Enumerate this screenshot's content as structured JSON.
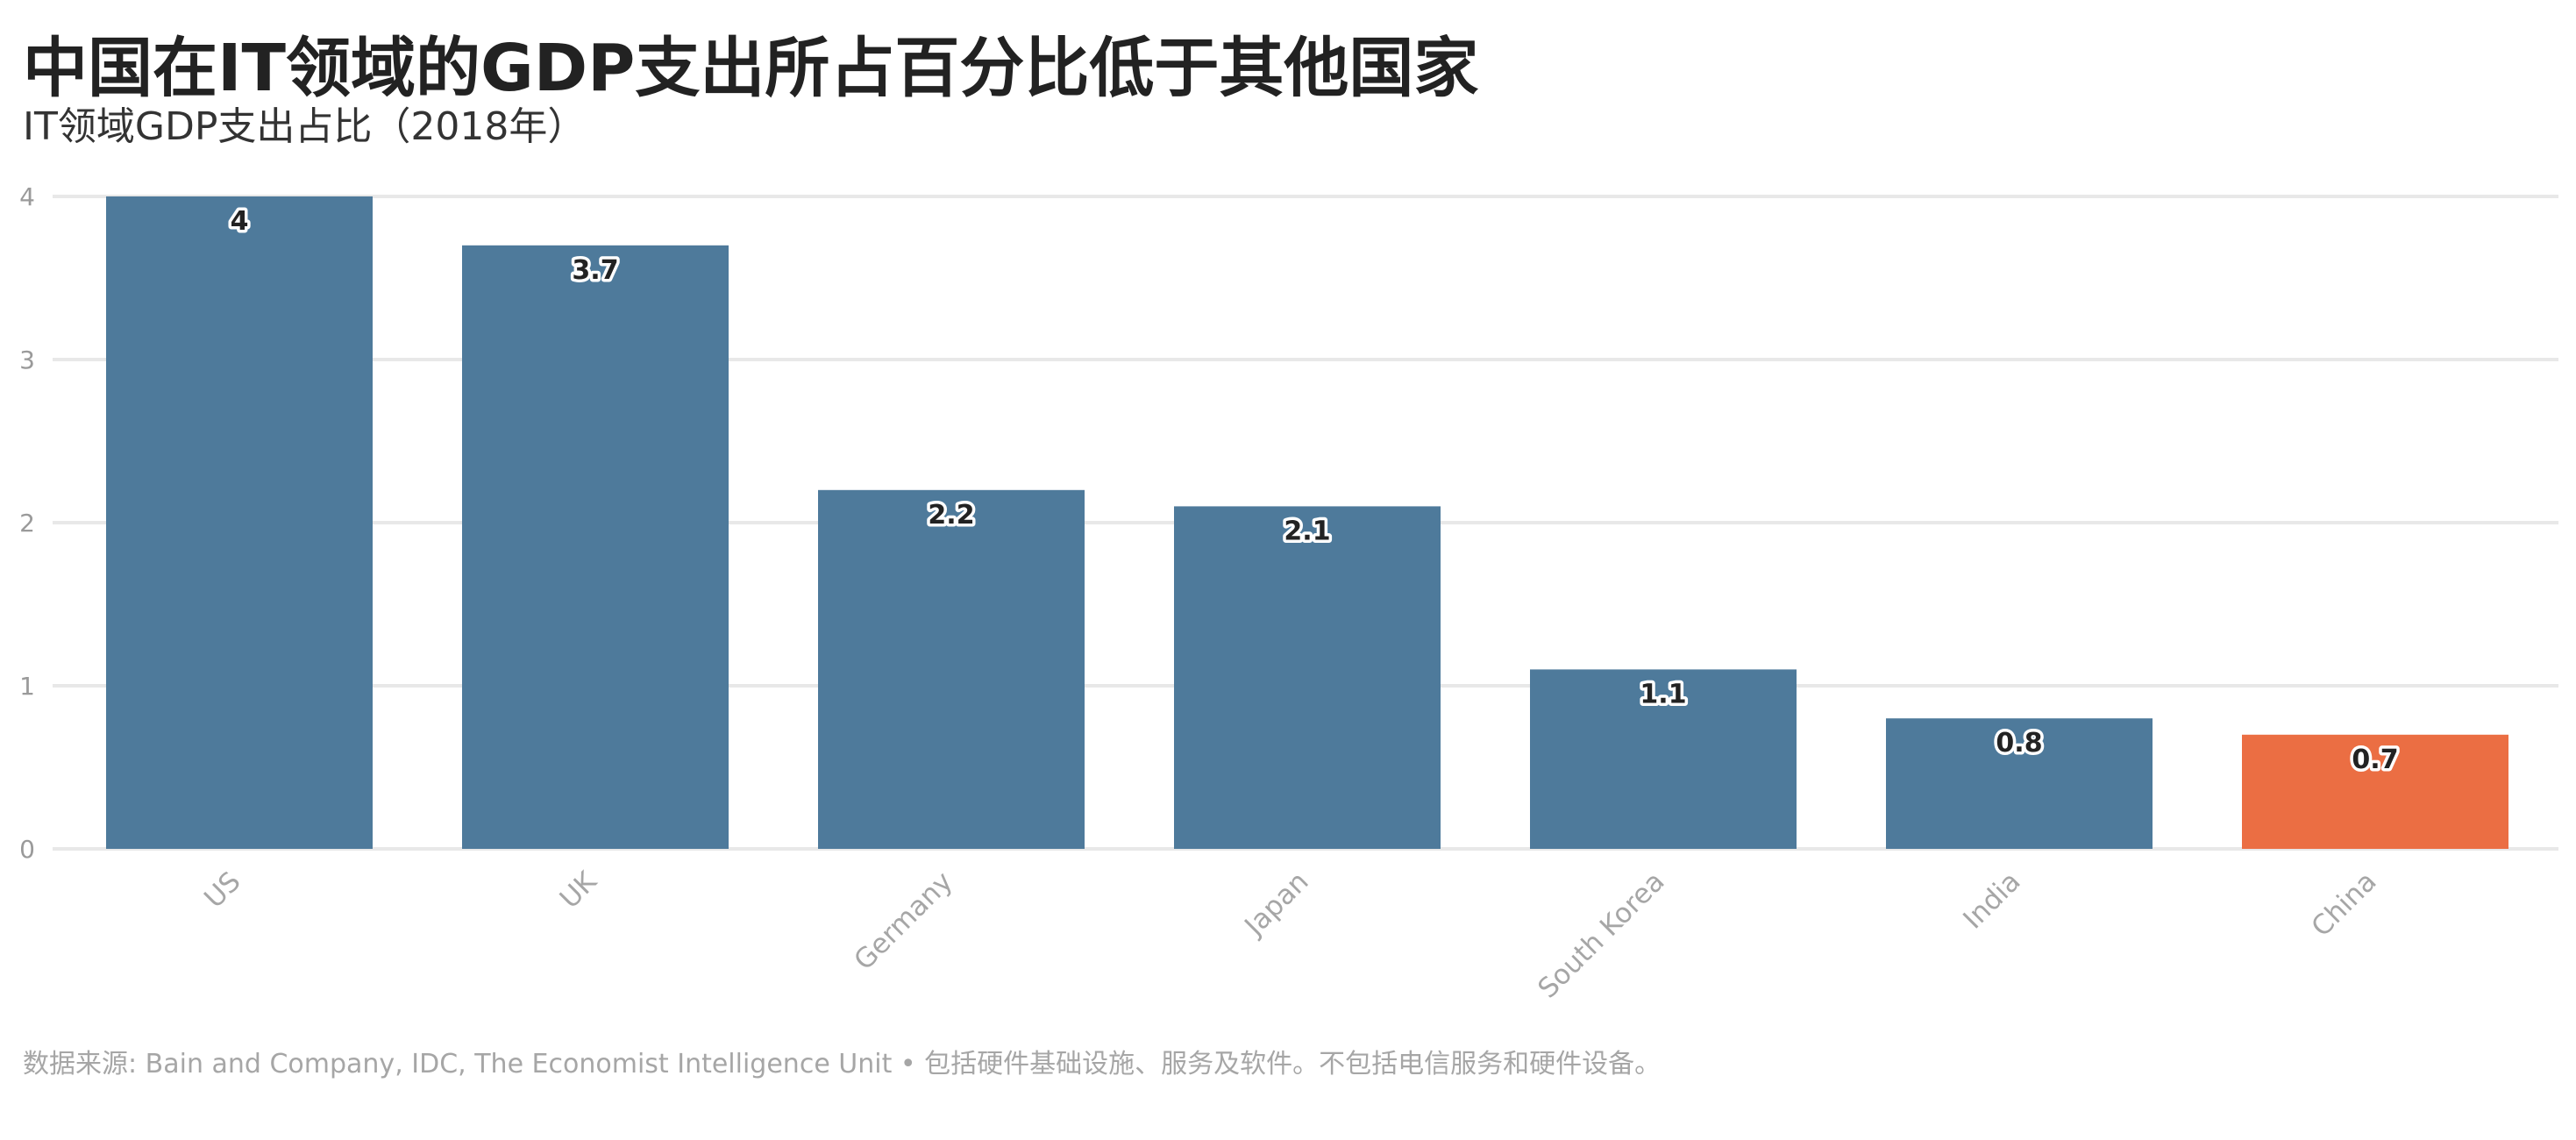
{
  "header": {
    "title": "中国在IT领域的GDP支出所占百分比低于其他国家",
    "subtitle": "IT领域GDP支出占比（2018年）"
  },
  "chart_data": {
    "type": "bar",
    "title": "中国在IT领域的GDP支出所占百分比低于其他国家",
    "subtitle": "IT领域GDP支出占比（2018年）",
    "categories": [
      "US",
      "UK",
      "Germany",
      "Japan",
      "South Korea",
      "India",
      "China"
    ],
    "values": [
      4,
      3.7,
      2.2,
      2.1,
      1.1,
      0.8,
      0.7
    ],
    "data_labels": [
      "4",
      "3.7",
      "2.2",
      "2.1",
      "1.1",
      "0.8",
      "0.7"
    ],
    "ylim": [
      0,
      4
    ],
    "yticks": [
      "0",
      "1",
      "2",
      "3",
      "4"
    ],
    "xlabel": "",
    "ylabel": "",
    "grid": true,
    "legend": "none",
    "colors": {
      "default": "#4e7a9b",
      "highlight": "#eb6e43",
      "highlight_category": "China"
    }
  },
  "footnote": {
    "text": "数据来源: Bain and Company, IDC, The Economist Intelligence Unit • 包括硬件基础设施、服务及软件。不包括电信服务和硬件设备。"
  }
}
